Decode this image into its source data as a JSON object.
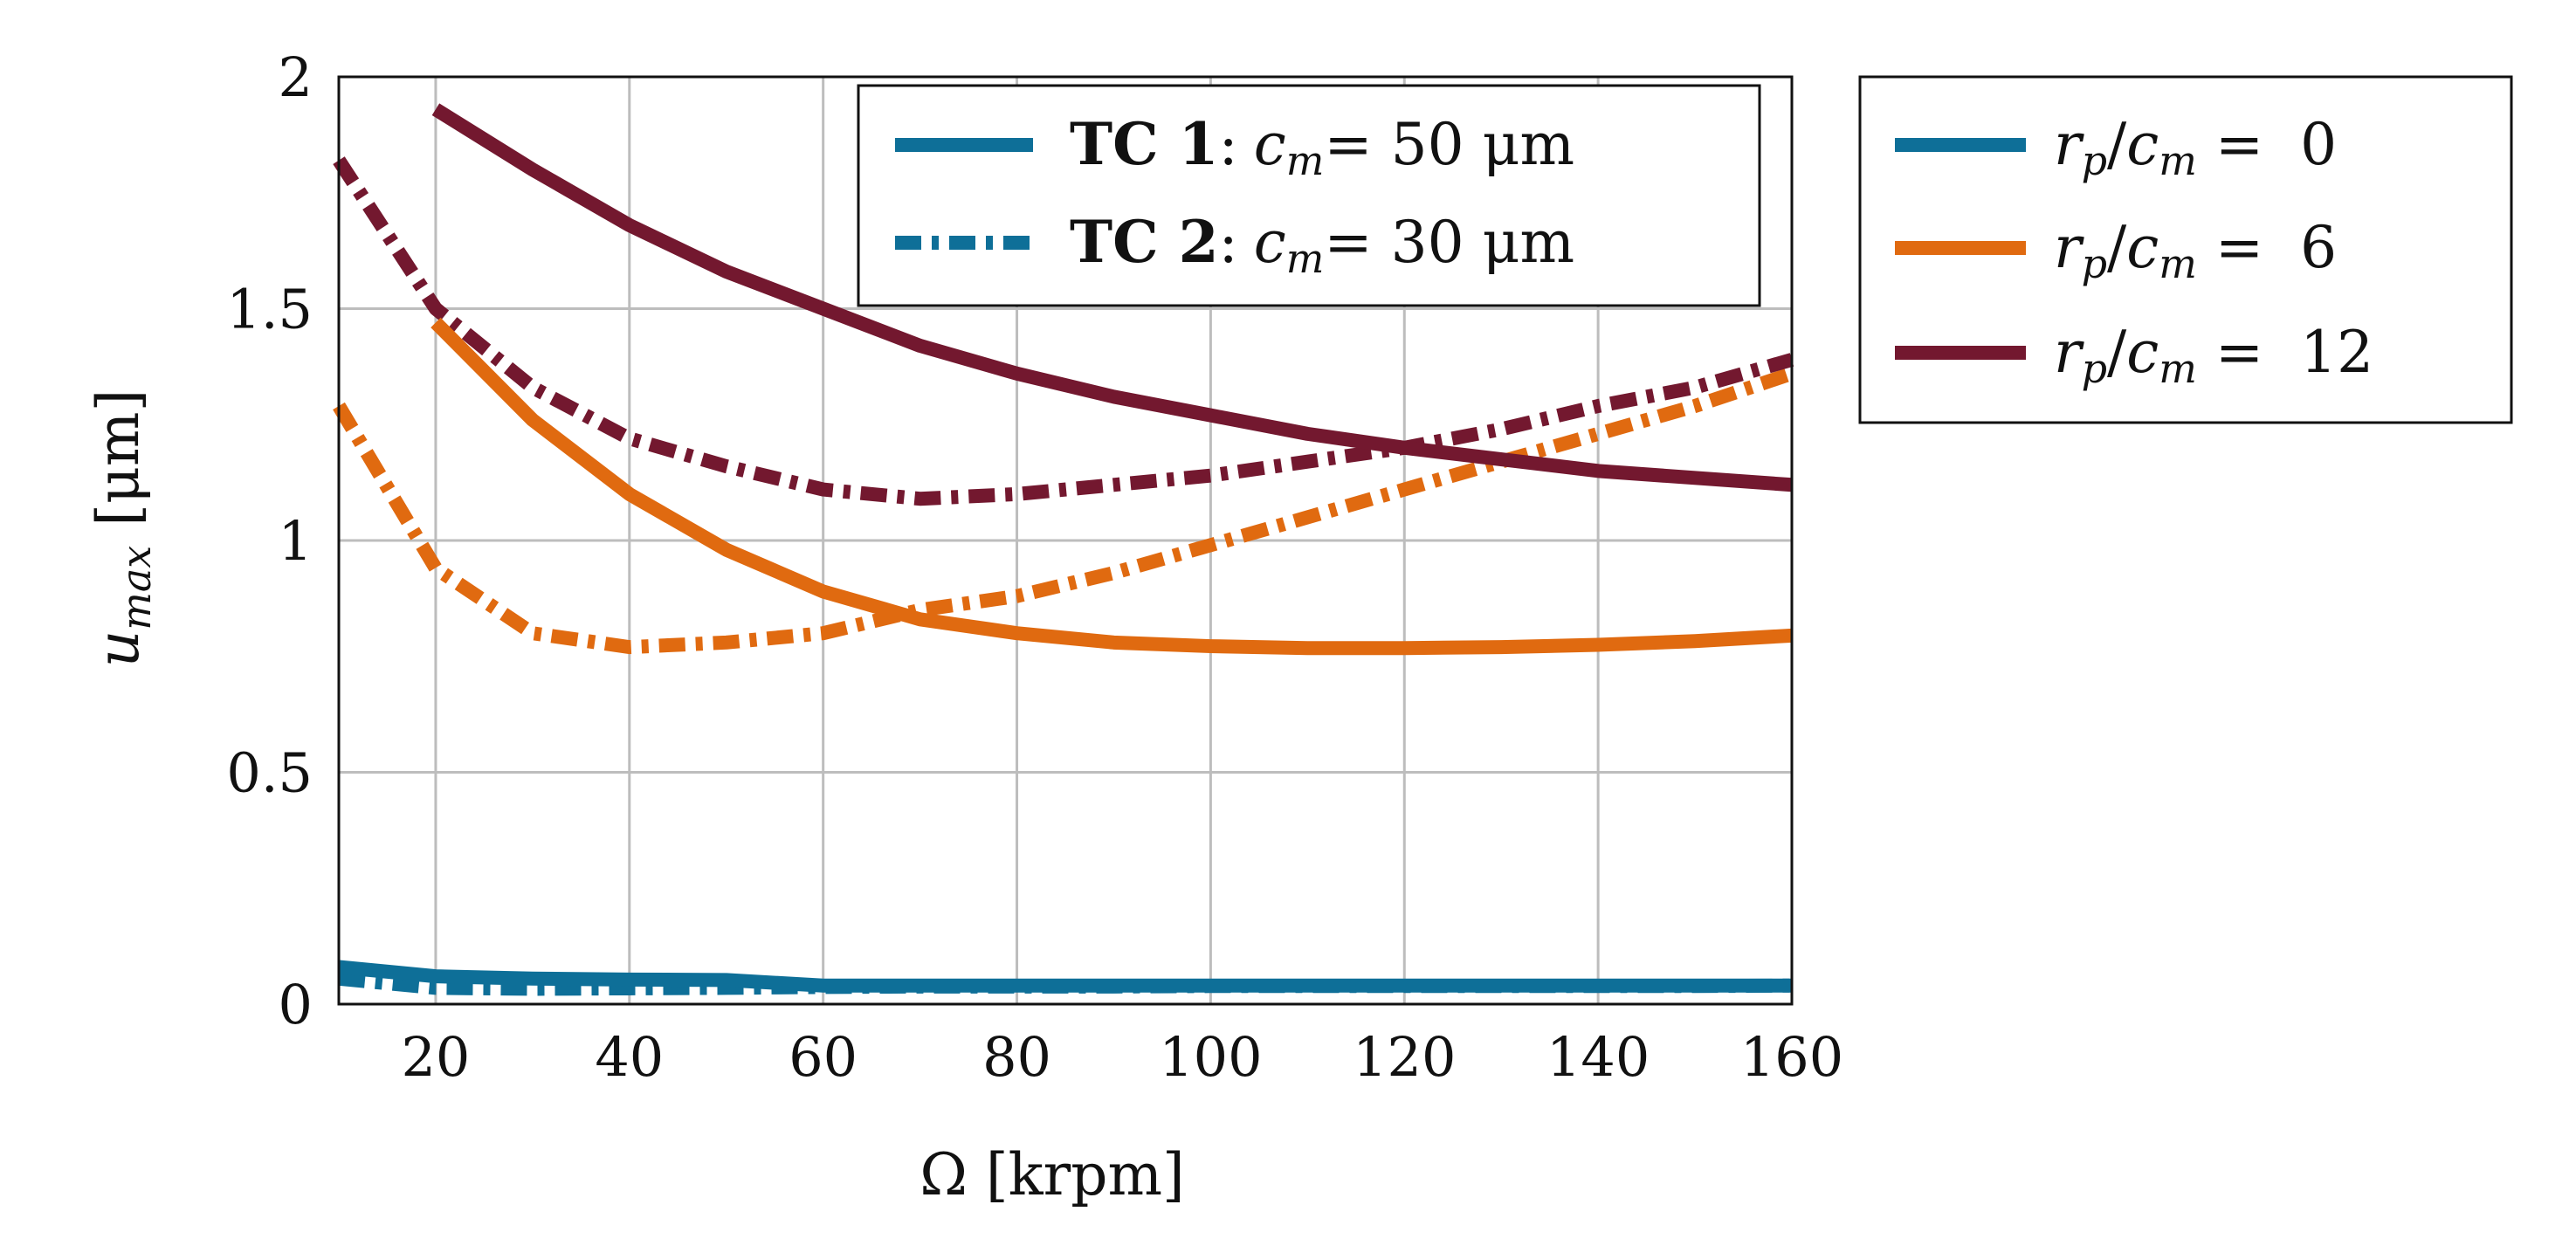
{
  "chart_data": {
    "type": "line",
    "xlabel": "Ω [krpm]",
    "ylabel_var": "u",
    "ylabel_sub": "max",
    "ylabel_unit": "[μm]",
    "xlim": [
      10,
      160
    ],
    "ylim": [
      0,
      2
    ],
    "xticks": [
      20,
      40,
      60,
      80,
      100,
      120,
      140,
      160
    ],
    "yticks": [
      0,
      0.5,
      1,
      1.5,
      2
    ],
    "ytick_labels": [
      "0",
      "0.5",
      "1",
      "1.5",
      "2"
    ],
    "grid": true,
    "colors": {
      "rp0": "#0e6f98",
      "rp6": "#e06a10",
      "rp12": "#73182f"
    },
    "series": [
      {
        "name": "TC1 rp/cm=0",
        "color_key": "rp0",
        "style": "solid",
        "x": [
          10,
          20,
          30,
          40,
          50,
          60,
          70,
          80,
          90,
          100,
          110,
          120,
          130,
          140,
          150,
          160
        ],
        "y": [
          0.08,
          0.06,
          0.055,
          0.053,
          0.052,
          0.04,
          0.04,
          0.04,
          0.04,
          0.04,
          0.04,
          0.04,
          0.04,
          0.04,
          0.04,
          0.04
        ]
      },
      {
        "name": "TC2 rp/cm=0",
        "color_key": "rp0",
        "style": "dashdot",
        "x": [
          10,
          20,
          30,
          40,
          50,
          60,
          70,
          80,
          90,
          100,
          110,
          120,
          130,
          140,
          150,
          160
        ],
        "y": [
          0.055,
          0.035,
          0.033,
          0.034,
          0.035,
          0.037,
          0.038,
          0.038,
          0.038,
          0.039,
          0.039,
          0.039,
          0.039,
          0.039,
          0.039,
          0.04
        ]
      },
      {
        "name": "TC1 rp/cm=6",
        "color_key": "rp6",
        "style": "solid",
        "x": [
          20,
          30,
          40,
          50,
          60,
          70,
          80,
          90,
          100,
          110,
          120,
          130,
          140,
          150,
          160
        ],
        "y": [
          1.47,
          1.26,
          1.1,
          0.98,
          0.89,
          0.83,
          0.8,
          0.78,
          0.772,
          0.768,
          0.768,
          0.77,
          0.775,
          0.783,
          0.795
        ]
      },
      {
        "name": "TC2 rp/cm=6",
        "color_key": "rp6",
        "style": "dashdot",
        "x": [
          10,
          20,
          30,
          40,
          50,
          60,
          70,
          80,
          90,
          100,
          110,
          120,
          130,
          140,
          150,
          160
        ],
        "y": [
          1.29,
          0.94,
          0.8,
          0.77,
          0.78,
          0.8,
          0.85,
          0.88,
          0.93,
          0.99,
          1.05,
          1.11,
          1.17,
          1.23,
          1.29,
          1.36
        ]
      },
      {
        "name": "TC1 rp/cm=12",
        "color_key": "rp12",
        "style": "solid",
        "x": [
          20,
          30,
          40,
          50,
          60,
          70,
          80,
          90,
          100,
          110,
          120,
          130,
          140,
          150,
          160
        ],
        "y": [
          1.93,
          1.8,
          1.68,
          1.58,
          1.5,
          1.42,
          1.36,
          1.31,
          1.27,
          1.23,
          1.2,
          1.175,
          1.15,
          1.135,
          1.12
        ]
      },
      {
        "name": "TC2 rp/cm=12",
        "color_key": "rp12",
        "style": "dashdot",
        "x": [
          10,
          20,
          30,
          40,
          50,
          60,
          70,
          80,
          90,
          100,
          110,
          120,
          130,
          140,
          150,
          160
        ],
        "y": [
          1.82,
          1.5,
          1.33,
          1.22,
          1.16,
          1.11,
          1.09,
          1.1,
          1.12,
          1.14,
          1.17,
          1.2,
          1.24,
          1.29,
          1.33,
          1.39
        ]
      }
    ],
    "legend_style": {
      "placement": "top-right-inside",
      "entries": [
        {
          "bold": "TC 1",
          "sep": ":",
          "var": "c",
          "sub": "m",
          "rest": "= 50 μm",
          "style": "solid"
        },
        {
          "bold": "TC 2",
          "sep": ":",
          "var": "c",
          "sub": "m",
          "rest": "= 30 μm",
          "style": "dashdot"
        }
      ]
    },
    "legend_color": {
      "placement": "outside-right",
      "entries": [
        {
          "var1": "r",
          "sub1": "p",
          "slash": "/",
          "var2": "c",
          "sub2": "m",
          "eq": " =  0",
          "color_key": "rp0"
        },
        {
          "var1": "r",
          "sub1": "p",
          "slash": "/",
          "var2": "c",
          "sub2": "m",
          "eq": " =  6",
          "color_key": "rp6"
        },
        {
          "var1": "r",
          "sub1": "p",
          "slash": "/",
          "var2": "c",
          "sub2": "m",
          "eq": " =  12",
          "color_key": "rp12"
        }
      ]
    }
  }
}
